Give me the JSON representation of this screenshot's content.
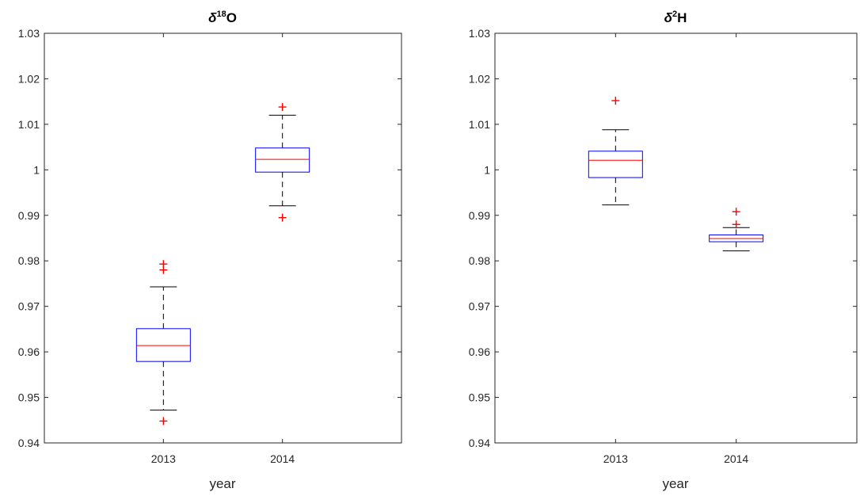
{
  "chart_data": [
    {
      "type": "box",
      "title": {
        "symbol": "δ",
        "superscript": "18",
        "element": "O"
      },
      "xlabel": "year",
      "ylabel": "",
      "categories": [
        "2013",
        "2014"
      ],
      "ylim": [
        0.94,
        1.03
      ],
      "yticks": [
        0.94,
        0.95,
        0.96,
        0.97,
        0.98,
        0.99,
        1,
        1.01,
        1.02,
        1.03
      ],
      "ytick_labels": [
        "0.94",
        "0.95",
        "0.96",
        "0.97",
        "0.98",
        "0.99",
        "1",
        "1.01",
        "1.02",
        "1.03"
      ],
      "grid": false,
      "boxes": [
        {
          "category": "2013",
          "whisker_low": 0.9472,
          "q1": 0.9579,
          "median": 0.9614,
          "q3": 0.9651,
          "whisker_high": 0.9743,
          "outliers": [
            0.9448,
            0.978,
            0.9793
          ]
        },
        {
          "category": "2014",
          "whisker_low": 0.9921,
          "q1": 0.9995,
          "median": 1.0023,
          "q3": 1.0048,
          "whisker_high": 1.012,
          "outliers": [
            0.9895,
            1.0138
          ]
        }
      ]
    },
    {
      "type": "box",
      "title": {
        "symbol": "δ",
        "superscript": "2",
        "element": "H"
      },
      "xlabel": "year",
      "ylabel": "",
      "categories": [
        "2013",
        "2014"
      ],
      "ylim": [
        0.94,
        1.03
      ],
      "yticks": [
        0.94,
        0.95,
        0.96,
        0.97,
        0.98,
        0.99,
        1,
        1.01,
        1.02,
        1.03
      ],
      "ytick_labels": [
        "0.94",
        "0.95",
        "0.96",
        "0.97",
        "0.98",
        "0.99",
        "1",
        "1.01",
        "1.02",
        "1.03"
      ],
      "grid": false,
      "boxes": [
        {
          "category": "2013",
          "whisker_low": 0.9923,
          "q1": 0.9983,
          "median": 1.0021,
          "q3": 1.0041,
          "whisker_high": 1.0088,
          "outliers": [
            1.0152
          ]
        },
        {
          "category": "2014",
          "whisker_low": 0.9822,
          "q1": 0.9842,
          "median": 0.9849,
          "q3": 0.9857,
          "whisker_high": 0.9873,
          "outliers": [
            0.988,
            0.9908
          ]
        }
      ]
    }
  ],
  "colors": {
    "box": "#0000ff",
    "median": "#ff0000",
    "whisker": "#000000",
    "outlier": "#ff0000",
    "axis": "#262626"
  }
}
